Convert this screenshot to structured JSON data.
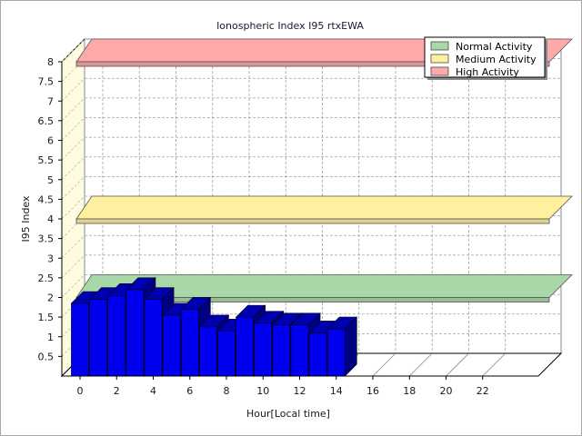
{
  "chart_data": {
    "type": "bar",
    "title": "Ionospheric Index I95 rtxEWA",
    "xlabel": "Hour[Local time]",
    "ylabel": "I95 Index",
    "xlim": [
      0,
      24
    ],
    "ylim": [
      0,
      8
    ],
    "x_ticks": [
      "0",
      "2",
      "4",
      "6",
      "8",
      "10",
      "12",
      "14",
      "16",
      "18",
      "20",
      "22"
    ],
    "y_ticks": [
      "0.5",
      "1",
      "1.5",
      "2",
      "2.5",
      "3",
      "3.5",
      "4",
      "4.5",
      "5",
      "5.5",
      "6",
      "6.5",
      "7",
      "7.5",
      "8"
    ],
    "hours": [
      0,
      1,
      2,
      3,
      4,
      5,
      6,
      7,
      8,
      9,
      10,
      11,
      12,
      13,
      14
    ],
    "values": [
      1.85,
      1.95,
      2.05,
      2.2,
      1.95,
      1.55,
      1.7,
      1.25,
      1.15,
      1.5,
      1.35,
      1.3,
      1.3,
      1.1,
      1.2
    ],
    "bar_color": "#0000ee",
    "grid": true,
    "legend_position": "top-right",
    "activity_bands": [
      {
        "name": "Normal Activity",
        "value": 2.0,
        "color": "#a8d8a8"
      },
      {
        "name": "Medium Activity",
        "value": 4.0,
        "color": "#fff0a0"
      },
      {
        "name": "High Activity",
        "value": 8.0,
        "color": "#ffaaaa"
      }
    ]
  }
}
